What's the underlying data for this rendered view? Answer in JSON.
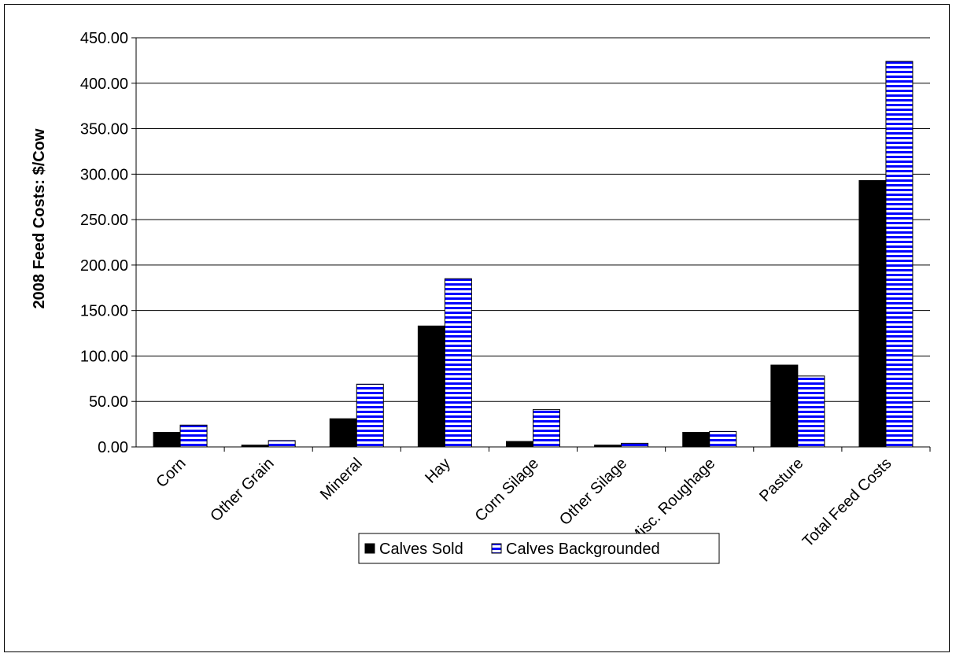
{
  "chart_data": {
    "type": "bar",
    "ylabel": "2008 Feed Costs: $/Cow",
    "xlabel": "",
    "ylim": [
      0,
      450
    ],
    "yticks": [
      "0.00",
      "50.00",
      "100.00",
      "150.00",
      "200.00",
      "250.00",
      "300.00",
      "350.00",
      "400.00",
      "450.00"
    ],
    "categories": [
      "Corn",
      "Other Grain",
      "Mineral",
      "Hay",
      "Corn Silage",
      "Other Silage",
      "Misc. Roughage",
      "Pasture",
      "Total Feed Costs"
    ],
    "series": [
      {
        "name": "Calves Sold",
        "values": [
          16,
          2,
          31,
          133,
          6,
          2,
          16,
          90,
          293
        ],
        "color": "#000000"
      },
      {
        "name": "Calves Backgrounded",
        "values": [
          24,
          7,
          69,
          185,
          41,
          4,
          17,
          78,
          424
        ],
        "color": "#0000ff",
        "pattern": "horizontal-stripes"
      }
    ],
    "grid": true,
    "legend": "bottom"
  }
}
